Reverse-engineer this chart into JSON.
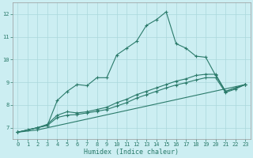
{
  "xlabel": "Humidex (Indice chaleur)",
  "bg_color": "#cceef2",
  "grid_color": "#aad8dc",
  "line_color": "#2a7a6a",
  "xlim": [
    -0.5,
    23.5
  ],
  "ylim": [
    6.5,
    12.5
  ],
  "yticks": [
    7,
    8,
    9,
    10,
    11,
    12
  ],
  "xticks": [
    0,
    1,
    2,
    3,
    4,
    5,
    6,
    7,
    8,
    9,
    10,
    11,
    12,
    13,
    14,
    15,
    16,
    17,
    18,
    19,
    20,
    21,
    22,
    23
  ],
  "series": [
    {
      "x": [
        0,
        1,
        2,
        3,
        4,
        5,
        6,
        7,
        8,
        9,
        10,
        11,
        12,
        13,
        14,
        15,
        16,
        17,
        18,
        19,
        20,
        21,
        22,
        23
      ],
      "y": [
        6.8,
        6.9,
        7.0,
        7.1,
        8.2,
        8.6,
        8.9,
        8.85,
        9.2,
        9.2,
        10.2,
        10.5,
        10.8,
        11.5,
        11.75,
        12.1,
        10.7,
        10.5,
        10.15,
        10.1,
        9.3,
        8.6,
        8.75,
        8.9
      ]
    },
    {
      "x": [
        0,
        2,
        3,
        4,
        5,
        6,
        7,
        8,
        9,
        10,
        11,
        12,
        13,
        14,
        15,
        16,
        17,
        18,
        19,
        20,
        21,
        22,
        23
      ],
      "y": [
        6.8,
        7.0,
        7.15,
        7.55,
        7.7,
        7.65,
        7.7,
        7.8,
        7.9,
        8.1,
        8.25,
        8.45,
        8.6,
        8.75,
        8.9,
        9.05,
        9.15,
        9.3,
        9.35,
        9.35,
        8.6,
        8.75,
        8.9
      ]
    },
    {
      "x": [
        0,
        2,
        3,
        4,
        5,
        6,
        7,
        8,
        9,
        10,
        11,
        12,
        13,
        14,
        15,
        16,
        17,
        18,
        19,
        20,
        21,
        22,
        23
      ],
      "y": [
        6.8,
        7.0,
        7.1,
        7.45,
        7.55,
        7.58,
        7.65,
        7.72,
        7.8,
        7.95,
        8.1,
        8.3,
        8.45,
        8.6,
        8.75,
        8.88,
        8.98,
        9.1,
        9.2,
        9.2,
        8.55,
        8.7,
        8.9
      ]
    },
    {
      "x": [
        0,
        2,
        23
      ],
      "y": [
        6.8,
        6.9,
        8.9
      ]
    }
  ]
}
